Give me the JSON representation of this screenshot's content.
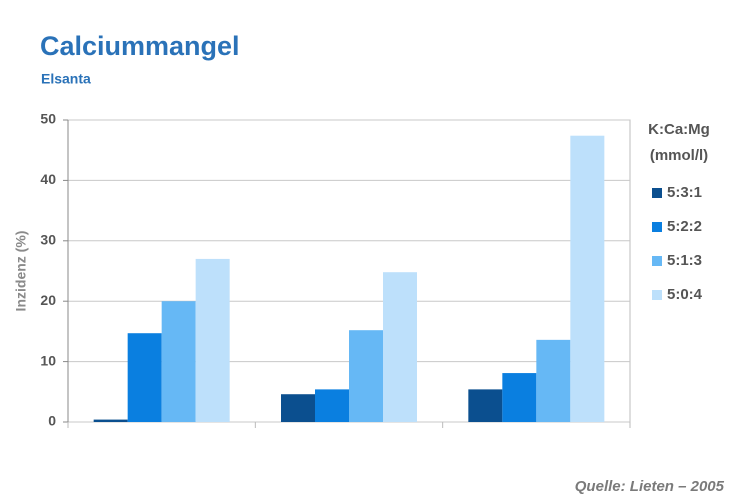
{
  "chart_data": {
    "type": "bar",
    "title": "Calciummangel",
    "subtitle": "Elsanta",
    "y_label": "Inzidenz (%)",
    "legend_title": [
      "K:Ca:Mg",
      "(mmol/l)"
    ],
    "source": "Quelle:  Lieten – 2005",
    "categories": [
      null,
      null,
      null
    ],
    "series": [
      {
        "name": "5:3:1",
        "color": "#0b4f8f",
        "values": [
          0.4,
          4.6,
          5.4
        ]
      },
      {
        "name": "5:2:2",
        "color": "#0a7fe0",
        "values": [
          14.7,
          5.4,
          8.1
        ]
      },
      {
        "name": "5:1:3",
        "color": "#66b8f5",
        "values": [
          20,
          15.2,
          13.6
        ]
      },
      {
        "name": "5:0:4",
        "color": "#bde0fb",
        "values": [
          27,
          24.8,
          47.4
        ]
      }
    ],
    "ylim": [
      0,
      50
    ],
    "yticks": [
      0,
      10,
      20,
      30,
      40,
      50
    ],
    "grid": true,
    "legend": "right"
  }
}
